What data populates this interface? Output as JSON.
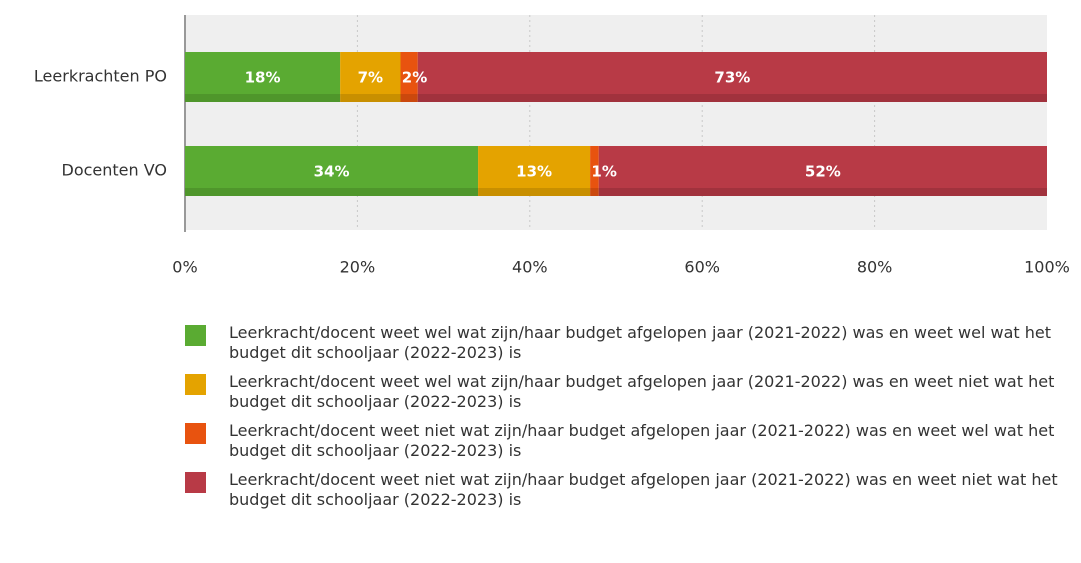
{
  "chart_data": {
    "type": "stacked-bar-horizontal",
    "categories": [
      "Leerkrachten PO",
      "Docenten VO"
    ],
    "series": [
      {
        "name": "Leerkracht/docent weet wel wat zijn/haar budget afgelopen jaar (2021-2022) was en weet wel wat het budget dit schooljaar (2022-2023) is",
        "color": "#5aab32",
        "values": [
          18,
          34
        ],
        "value_labels": [
          "18%",
          "34%"
        ]
      },
      {
        "name": "Leerkracht/docent weet wel wat zijn/haar budget afgelopen jaar (2021-2022) was en weet niet wat het budget dit schooljaar (2022-2023) is",
        "color": "#e4a300",
        "values": [
          7,
          13
        ],
        "value_labels": [
          "7%",
          "13%"
        ]
      },
      {
        "name": "Leerkracht/docent weet niet wat zijn/haar budget afgelopen jaar (2021-2022) was en weet wel wat het budget dit schooljaar (2022-2023) is",
        "color": "#e8530f",
        "values": [
          2,
          1
        ],
        "value_labels": [
          "2%",
          "1%"
        ]
      },
      {
        "name": "Leerkracht/docent weet niet wat zijn/haar budget afgelopen jaar (2021-2022) was en weet niet wat het budget dit schooljaar (2022-2023) is",
        "color": "#b83a46",
        "values": [
          73,
          52
        ],
        "value_labels": [
          "73%",
          "52%"
        ]
      }
    ],
    "xlim": [
      0,
      100
    ],
    "xticks": [
      {
        "value": 0,
        "label": "0%"
      },
      {
        "value": 20,
        "label": "20%"
      },
      {
        "value": 40,
        "label": "40%"
      },
      {
        "value": 60,
        "label": "60%"
      },
      {
        "value": 80,
        "label": "80%"
      },
      {
        "value": 100,
        "label": "100%"
      }
    ],
    "grid": true
  }
}
